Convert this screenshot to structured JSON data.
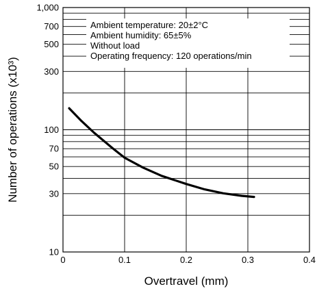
{
  "chart_data": {
    "type": "line",
    "xlabel": "Overtravel (mm)",
    "ylabel": "Number of operations  (x10³)",
    "xlim": [
      0,
      0.4
    ],
    "ylim": [
      10,
      1000
    ],
    "y_scale": "log",
    "x_ticks": [
      {
        "value": 0,
        "label": "0"
      },
      {
        "value": 0.1,
        "label": "0.1"
      },
      {
        "value": 0.2,
        "label": "0.2"
      },
      {
        "value": 0.3,
        "label": "0.3"
      },
      {
        "value": 0.4,
        "label": "0.4"
      }
    ],
    "y_ticks": [
      {
        "value": 10,
        "label": "10"
      },
      {
        "value": 30,
        "label": "30"
      },
      {
        "value": 50,
        "label": "50"
      },
      {
        "value": 70,
        "label": "70"
      },
      {
        "value": 100,
        "label": "100"
      },
      {
        "value": 300,
        "label": "300"
      },
      {
        "value": 500,
        "label": "500"
      },
      {
        "value": 700,
        "label": "700"
      },
      {
        "value": 1000,
        "label": "1,000"
      }
    ],
    "y_gridlines": [
      20,
      30,
      40,
      50,
      60,
      70,
      80,
      90,
      100,
      200,
      300,
      400,
      500,
      600,
      700,
      800,
      900
    ],
    "annotations": [
      "Ambient temperature: 20±2°C",
      "Ambient humidity: 65±5%",
      "Without load",
      "Operating frequency: 120 operations/min"
    ],
    "series": [
      {
        "x": [
          0.01,
          0.03,
          0.05,
          0.08,
          0.1,
          0.13,
          0.16,
          0.2,
          0.23,
          0.26,
          0.29,
          0.31
        ],
        "y": [
          150,
          118,
          95,
          71,
          59,
          49,
          42,
          36,
          32.5,
          30.2,
          28.8,
          28.2
        ]
      }
    ],
    "grid": true,
    "colors": {
      "line": "#000000",
      "grid": "#000000",
      "background": "#ffffff"
    }
  }
}
